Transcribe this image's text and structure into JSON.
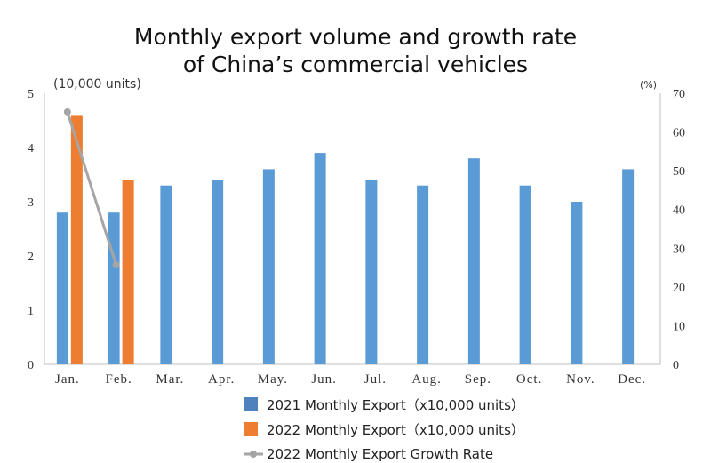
{
  "chart_data": {
    "type": "bar",
    "title_line1": "Monthly export volume and growth rate",
    "title_line2": "of China’s commercial vehicles",
    "left_unit": "(10,000 units)",
    "right_unit": "(%)",
    "categories": [
      "Jan.",
      "Feb.",
      "Mar.",
      "Apr.",
      "May.",
      "Jun.",
      "Jul.",
      "Aug.",
      "Sep.",
      "Oct.",
      "Nov.",
      "Dec."
    ],
    "ylim_left": [
      0,
      5
    ],
    "yticks_left": [
      "0",
      "1",
      "2",
      "3",
      "4",
      "5"
    ],
    "ylim_right": [
      0,
      70
    ],
    "yticks_right": [
      "0",
      "10",
      "20",
      "30",
      "40",
      "50",
      "60",
      "70"
    ],
    "series": [
      {
        "name": "2021 Monthly Export（x10,000 units）",
        "type": "bar",
        "axis": "left",
        "color": "#5b9bd5",
        "values": [
          2.8,
          2.8,
          3.3,
          3.4,
          3.6,
          3.9,
          3.4,
          3.3,
          3.8,
          3.3,
          3.0,
          3.6
        ]
      },
      {
        "name": "2022 Monthly Export（x10,000 units）",
        "type": "bar",
        "axis": "left",
        "color": "#ed7d31",
        "values": [
          4.6,
          3.4,
          null,
          null,
          null,
          null,
          null,
          null,
          null,
          null,
          null,
          null
        ]
      },
      {
        "name": "2022 Monthly Export Growth Rate",
        "type": "line",
        "axis": "right",
        "color": "#a5a5a5",
        "values": [
          65.2,
          25.7,
          null,
          null,
          null,
          null,
          null,
          null,
          null,
          null,
          null,
          null
        ]
      }
    ],
    "legend_position": "bottom",
    "grid": false
  }
}
